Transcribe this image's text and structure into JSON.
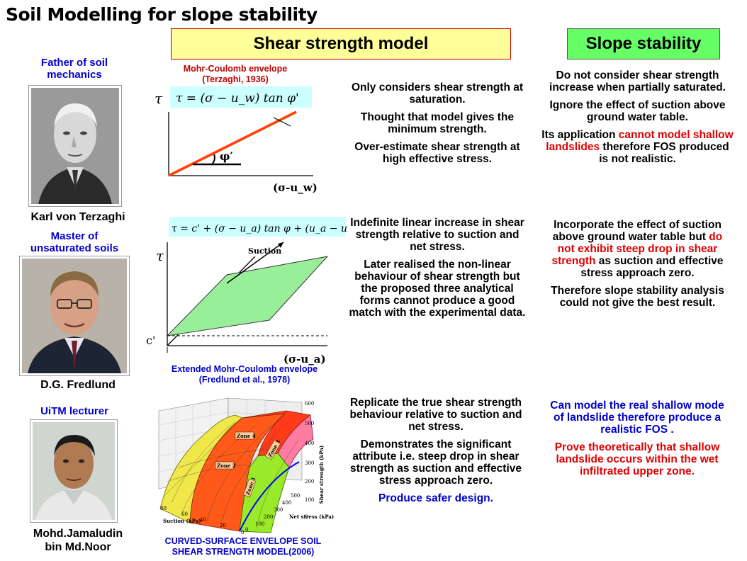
{
  "title": "Soil Modelling for slope stability",
  "headers": {
    "shear": "Shear strength model",
    "slope": "Slope stability"
  },
  "people": [
    {
      "role": "Father of soil mechanics",
      "name": "Karl von Terzaghi"
    },
    {
      "role": "Master of unsaturated soils",
      "name": "D.G. Fredlund"
    },
    {
      "role": "UiTM lecturer",
      "name_line1": "Mohd.Jamaludin",
      "name_line2": "bin Md.Noor"
    }
  ],
  "row1": {
    "caption_line1": "Mohr-Coulomb envelope",
    "caption_line2": "(Terzaghi, 1936)",
    "tau": "τ",
    "equation": "τ = (σ − u_w) tan φ'",
    "phi": "φ′",
    "xaxis": "(σ-u_w)",
    "shear_points": [
      "Only considers shear strength at saturation.",
      "Thought that model gives the minimum strength.",
      "Over-estimate shear strength at high effective stress."
    ],
    "slope_points": [
      "Do not consider shear strength increase when partially saturated.",
      "Ignore the effect of suction above ground water table."
    ],
    "slope_p3_a": "Its application ",
    "slope_p3_red": "cannot model shallow landslides",
    "slope_p3_b": " therefore FOS produced is not realistic."
  },
  "row2": {
    "equation": "τ = c' + (σ − u_a) tan φ + (u_a − u_w) tan φ^b",
    "tau": "τ",
    "c": "c'",
    "suction": "Suction",
    "xaxis": "(σ-u_a)",
    "caption_line1": "Extended Mohr-Coulomb envelope",
    "caption_line2": "(Fredlund et al., 1978)",
    "shear_points": [
      "Indefinite linear increase in shear strength relative to suction and net stress.",
      "Later realised the non-linear behaviour of shear strength but the proposed three analytical forms cannot produce a good match with the experimental data."
    ],
    "slope_p1_a": "Incorporate the effect of suction above ground water table but ",
    "slope_p1_red": "do not exhibit steep drop in shear strength",
    "slope_p1_b": " as suction and effective stress approach zero.",
    "slope_p2": "Therefore slope stability analysis could not give the best result."
  },
  "row3": {
    "zones": [
      "Zone 4",
      "Zone 3",
      "Zone 2",
      "Zone 1"
    ],
    "axis_shear": "Shear strength (kPa)",
    "axis_suction": "Suction (kPa)",
    "axis_net": "Net stress (kPa)",
    "shear_ticks": [
      "600",
      "500",
      "400",
      "300",
      "200",
      "100",
      "0"
    ],
    "suction_ticks": [
      "80",
      "60",
      "40",
      "20",
      "0"
    ],
    "net_ticks": [
      "0",
      "100",
      "200",
      "300",
      "400",
      "500"
    ],
    "caption_line1": "CURVED-SURFACE  ENVELOPE  SOIL",
    "caption_line2": "SHEAR  STRENGTH  MODEL(2006)",
    "shear_points": [
      "Replicate the true shear strength behaviour relative to suction and net stress.",
      "Demonstrates the significant attribute i.e. steep drop in shear strength as suction and effective stress approach zero."
    ],
    "shear_blue": "Produce safer design.",
    "slope_blue": "Can model the real shallow mode of landslide therefore produce a realistic FOS .",
    "slope_red": "Prove theoretically that shallow landslide occurs within the wet infiltrated upper zone."
  },
  "colors": {
    "orange_line": "#ff4000",
    "green_plane": "#99ee99",
    "caption_red": "#c00000",
    "blue": "#0000cc",
    "red": "#e00000"
  }
}
